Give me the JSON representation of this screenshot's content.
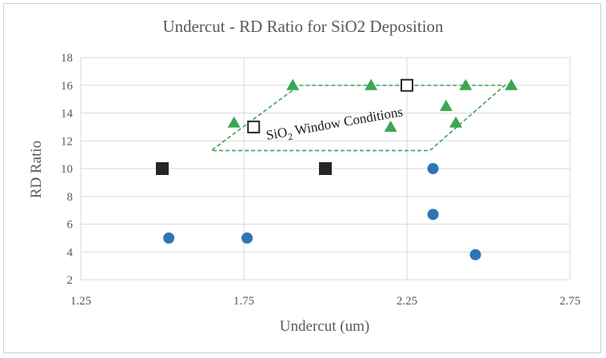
{
  "chart_data": {
    "type": "scatter",
    "title": "Undercut - RD Ratio for SiO2 Deposition",
    "xlabel": "Undercut (um)",
    "ylabel": "RD Ratio",
    "xlim": [
      1.25,
      2.75
    ],
    "ylim": [
      2,
      18
    ],
    "xticks": [
      1.25,
      1.75,
      2.25,
      2.75
    ],
    "xtick_labels": [
      "1.25",
      "1.75",
      "2.25",
      "2.75"
    ],
    "yticks": [
      2,
      4,
      6,
      8,
      10,
      12,
      14,
      16,
      18
    ],
    "ytick_labels": [
      "2",
      "4",
      "6",
      "8",
      "10",
      "12",
      "14",
      "16",
      "18"
    ],
    "grid": true,
    "legend": "none",
    "series": [
      {
        "marker": "circle",
        "color": "#2e75b6",
        "points": [
          [
            1.52,
            5.0
          ],
          [
            1.76,
            5.0
          ],
          [
            2.33,
            10.0
          ],
          [
            2.33,
            6.7
          ],
          [
            2.46,
            3.8
          ]
        ]
      },
      {
        "marker": "triangle",
        "color": "#3aa655",
        "points": [
          [
            1.72,
            13.3
          ],
          [
            1.9,
            16.0
          ],
          [
            2.14,
            16.0
          ],
          [
            2.2,
            13.0
          ],
          [
            2.37,
            14.5
          ],
          [
            2.4,
            13.3
          ],
          [
            2.43,
            16.0
          ],
          [
            2.57,
            16.0
          ]
        ]
      },
      {
        "marker": "square-filled",
        "color": "#262626",
        "points": [
          [
            1.5,
            10.0
          ],
          [
            2.0,
            10.0
          ]
        ]
      },
      {
        "marker": "square-open",
        "color": "#262626",
        "points": [
          [
            1.78,
            13.0
          ],
          [
            2.25,
            16.0
          ]
        ]
      }
    ],
    "window_region": {
      "color": "#3aa655",
      "style": "dashed",
      "vertices": [
        [
          1.92,
          16.0
        ],
        [
          2.55,
          16.0
        ],
        [
          2.32,
          11.3
        ],
        [
          1.65,
          11.3
        ]
      ]
    },
    "annotation": {
      "text": "SiO",
      "subscript": "2",
      "text_after": " Window Conditions",
      "x": 1.89,
      "y": 12.7
    }
  }
}
